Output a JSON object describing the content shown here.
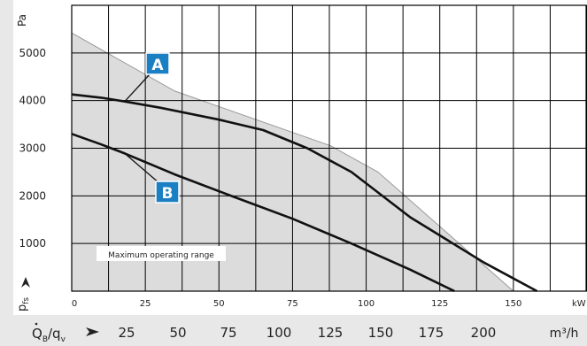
{
  "chart_data": {
    "type": "line",
    "x_axis": {
      "unit": "kW",
      "range": [
        0,
        175
      ],
      "ticks": [
        0,
        25,
        50,
        75,
        100,
        125,
        150
      ],
      "grid_step": 12.5
    },
    "y_axis": {
      "unit": "Pa",
      "label": "p",
      "label_subscript": "fs",
      "range": [
        0,
        6000
      ],
      "ticks": [
        1000,
        2000,
        3000,
        4000,
        5000
      ],
      "grid_step": 1000
    },
    "flow_axis": {
      "label": "Q",
      "label_subscript": "B",
      "label_sep": "/q",
      "label_sub2": "v",
      "unit": "m³/h",
      "ticks": [
        "25",
        "50",
        "75",
        "100",
        "125",
        "150",
        "175",
        "200"
      ]
    },
    "grid": true,
    "colors": {
      "area_fill": "#dcdcdc",
      "area_edge": "#9a9a9a",
      "curve": "#111111",
      "badge": "#1b7fc4",
      "grid": "#000000",
      "band": "#e8e8e8"
    },
    "area": {
      "label": "Maximum operating range",
      "boundary": [
        [
          0,
          5420
        ],
        [
          35,
          4200
        ],
        [
          88,
          3050
        ],
        [
          104,
          2500
        ],
        [
          150,
          0
        ]
      ]
    },
    "series": [
      {
        "name": "A",
        "points": [
          [
            0,
            4130
          ],
          [
            10,
            4060
          ],
          [
            18,
            3980
          ],
          [
            30,
            3850
          ],
          [
            50,
            3600
          ],
          [
            65,
            3380
          ],
          [
            80,
            3000
          ],
          [
            95,
            2500
          ],
          [
            115,
            1550
          ],
          [
            140,
            600
          ],
          [
            158,
            0
          ]
        ]
      },
      {
        "name": "B",
        "points": [
          [
            0,
            3300
          ],
          [
            10,
            3080
          ],
          [
            18,
            2890
          ],
          [
            35,
            2450
          ],
          [
            55,
            1980
          ],
          [
            75,
            1520
          ],
          [
            95,
            1000
          ],
          [
            115,
            450
          ],
          [
            130,
            0
          ]
        ]
      }
    ]
  }
}
